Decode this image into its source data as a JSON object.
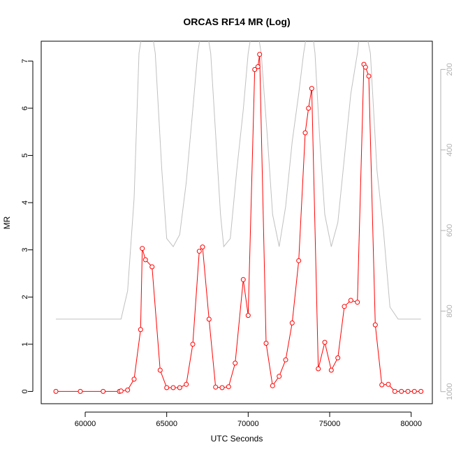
{
  "chart_data": {
    "type": "line",
    "title": "ORCAS RF14 MR (Log)",
    "xlabel": "UTC Seconds",
    "ylabel": "MR",
    "xlim": [
      57300,
      81300
    ],
    "ylim": [
      -0.26,
      7.42
    ],
    "x_ticks": [
      60000,
      65000,
      70000,
      75000,
      80000
    ],
    "y_ticks": [
      0,
      1,
      2,
      3,
      4,
      5,
      6,
      7
    ],
    "y2_ticks": [
      200,
      400,
      600,
      800,
      1000
    ],
    "y2lim": [
      1030,
      130
    ],
    "y2_reversed": true,
    "grid": false,
    "series": [
      {
        "color": "#ff0000",
        "marker": "open-circle",
        "points": [
          [
            58200,
            0.0
          ],
          [
            59700,
            0.0
          ],
          [
            61100,
            0.0
          ],
          [
            62100,
            0.0
          ],
          [
            62200,
            0.01
          ],
          [
            62600,
            0.03
          ],
          [
            63000,
            0.26
          ],
          [
            63400,
            1.31
          ],
          [
            63500,
            3.03
          ],
          [
            63700,
            2.79
          ],
          [
            64100,
            2.64
          ],
          [
            64600,
            0.45
          ],
          [
            65000,
            0.08
          ],
          [
            65400,
            0.08
          ],
          [
            65800,
            0.08
          ],
          [
            66200,
            0.15
          ],
          [
            66600,
            1.0
          ],
          [
            67000,
            2.97
          ],
          [
            67200,
            3.06
          ],
          [
            67600,
            1.53
          ],
          [
            68000,
            0.09
          ],
          [
            68400,
            0.08
          ],
          [
            68800,
            0.1
          ],
          [
            69200,
            0.6
          ],
          [
            69700,
            2.37
          ],
          [
            70000,
            1.61
          ],
          [
            70400,
            6.82
          ],
          [
            70600,
            6.88
          ],
          [
            70700,
            7.14
          ],
          [
            71100,
            1.02
          ],
          [
            71500,
            0.12
          ],
          [
            71900,
            0.32
          ],
          [
            72300,
            0.67
          ],
          [
            72700,
            1.45
          ],
          [
            73100,
            2.77
          ],
          [
            73500,
            5.48
          ],
          [
            73700,
            6.0
          ],
          [
            73900,
            6.42
          ],
          [
            74300,
            0.48
          ],
          [
            74700,
            1.04
          ],
          [
            75100,
            0.45
          ],
          [
            75500,
            0.71
          ],
          [
            75900,
            1.8
          ],
          [
            76300,
            1.93
          ],
          [
            76700,
            1.89
          ],
          [
            77100,
            6.93
          ],
          [
            77200,
            6.87
          ],
          [
            77400,
            6.68
          ],
          [
            77800,
            1.41
          ],
          [
            78200,
            0.14
          ],
          [
            78600,
            0.15
          ],
          [
            79000,
            0.0
          ],
          [
            79400,
            0.0
          ],
          [
            79800,
            0.0
          ],
          [
            80200,
            0.0
          ],
          [
            80600,
            0.0
          ]
        ]
      },
      {
        "color": "#c0c0c0",
        "axis": "right",
        "points": [
          [
            58200,
            820
          ],
          [
            61000,
            820
          ],
          [
            62200,
            820
          ],
          [
            62600,
            750
          ],
          [
            63000,
            520
          ],
          [
            63300,
            160
          ],
          [
            63800,
            30
          ],
          [
            64300,
            160
          ],
          [
            64700,
            450
          ],
          [
            65000,
            620
          ],
          [
            65400,
            640
          ],
          [
            65800,
            610
          ],
          [
            66200,
            480
          ],
          [
            66600,
            300
          ],
          [
            66900,
            160
          ],
          [
            67300,
            60
          ],
          [
            67700,
            160
          ],
          [
            68000,
            360
          ],
          [
            68300,
            560
          ],
          [
            68500,
            640
          ],
          [
            68900,
            620
          ],
          [
            69300,
            450
          ],
          [
            69700,
            300
          ],
          [
            70000,
            160
          ],
          [
            70400,
            60
          ],
          [
            70800,
            160
          ],
          [
            71200,
            380
          ],
          [
            71500,
            560
          ],
          [
            71900,
            640
          ],
          [
            72300,
            540
          ],
          [
            72700,
            380
          ],
          [
            73100,
            260
          ],
          [
            73400,
            160
          ],
          [
            73800,
            60
          ],
          [
            74100,
            160
          ],
          [
            74400,
            380
          ],
          [
            74700,
            560
          ],
          [
            75100,
            640
          ],
          [
            75500,
            580
          ],
          [
            75900,
            420
          ],
          [
            76300,
            260
          ],
          [
            76700,
            160
          ],
          [
            77000,
            60
          ],
          [
            77500,
            160
          ],
          [
            77900,
            450
          ],
          [
            78300,
            600
          ],
          [
            78700,
            790
          ],
          [
            79200,
            820
          ],
          [
            80600,
            820
          ]
        ]
      }
    ]
  }
}
